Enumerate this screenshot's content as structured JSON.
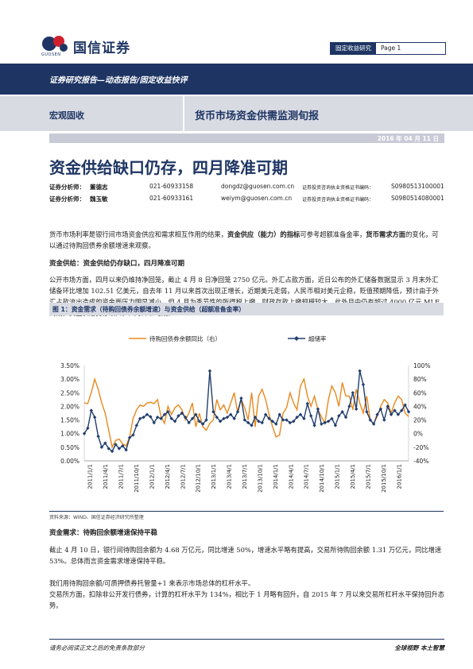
{
  "header": {
    "logo_cn": "国信证券",
    "logo_en": "GUOSEN",
    "report_tag": "固定收益研究",
    "page": "Page 1"
  },
  "band": {
    "breadcrumb": "证券研究报告—动态报告/固定收益快评",
    "section": "宏观固收",
    "series": "货币市场资金供需监测旬报"
  },
  "date": "2016 年 04 月 11 日",
  "title": "资金供给缺口仍存，四月降准可期",
  "analysts": [
    {
      "role": "证券分析师：",
      "name": "董德志",
      "phone": "021-60933158",
      "email": "dongdz@guosen.com.cn",
      "cert_label": "证券投资咨询执业资格证书编码：",
      "cert": "S0980513100001"
    },
    {
      "role": "证券分析师：",
      "name": "魏玉敏",
      "phone": "021-60933161",
      "email": "weiym@guosen.com.cn",
      "cert_label": "证券投资咨询执业资格证书编码：",
      "cert": "S0980514080001"
    }
  ],
  "intro": {
    "p1": "货币市场利率是银行间市场资金供应和需求相互作用的结果，",
    "p1b": "资金供应（能力）的指标",
    "p1c": "可参考超额准备金率，",
    "p1d": "货币需求方面",
    "p1e": "的变化，可以通过待购回债券余额增速来观察。"
  },
  "section1": {
    "heading": "资金供给：资金供给仍存缺口，四月降准可期",
    "body": "公开市场方面，四月以来仍维持净回笼，截止 4 月 8 日净回笼 2750 亿元。外汇占款方面，近日公布的外汇储备数据显示 3 月末外汇储备环比增加 102.51 亿美元，自去年 11 月以来首次出现正增长，近期美元走弱，人民币相对美元企稳，贬值预期降低，预计由于外汇占款流出造成的资金面压力明显减小，但 4 月为季节性的所得税上缴，财政存款上缴规模较大，此外月中仍有超过 4000 亿元 MLF 到期，资金供给仍存缺口，四月降准可期。"
  },
  "figure": {
    "title": "图 1：资金需求（待购回债券余额增速）与资金供给（超额准备金率）",
    "source": "资料来源：WIND、国信证券经济研究所整理"
  },
  "section2": {
    "heading": "资金需求：待购回余额增速保持平稳",
    "body": "截止 4 月 10 日，银行间待购回余额为 4.68 万亿元，同比增速 50%，增速水平略有提高，交易所待购回余额 1.31 万亿元，同比增速 53%。总体而言资金需求增速保持平稳。",
    "body2": "我们用待购回余额/可质押债券托管量+1 来表示市场总体的杠杆水平。",
    "body3": "交易所方面，扣除非公开发行债券，计算的杠杆水平为 134%，相比于 1 月略有回升，自 2015 年 7 月以来交易所杠杆水平保持回升态势。"
  },
  "footer": {
    "disclaimer": "请务必阅读正文之后的免责条款部分",
    "slogan": "全球视野 本土智慧"
  },
  "colors": {
    "navy": "#1e3563",
    "orange": "#e8891e",
    "series_blue": "#213f6d"
  },
  "chart_data": {
    "type": "line",
    "title": "",
    "legend": [
      "待购回债券余额同比（右）",
      "超储率"
    ],
    "legend_position": "top",
    "x_tick_labels": [
      "2011/1/1",
      "2011/4/1",
      "2011/7/1",
      "2011/10/1",
      "2012/1/1",
      "2012/4/1",
      "2012/7/1",
      "2012/10/1",
      "2013/1/1",
      "2013/4/1",
      "2013/7/1",
      "2013/10/1",
      "2014/1/1",
      "2014/4/1",
      "2014/7/1",
      "2014/10/1",
      "2015/1/1",
      "2015/4/1",
      "2015/7/1",
      "2015/10/1",
      "2016/1/1"
    ],
    "y_left_ticks": [
      "0.00%",
      "0.50%",
      "1.00%",
      "1.50%",
      "2.00%",
      "2.50%",
      "3.00%",
      "3.50%"
    ],
    "y_right_ticks": [
      "-40%",
      "-20%",
      "0%",
      "20%",
      "40%",
      "60%",
      "80%",
      "100%"
    ],
    "ylim_left": [
      0,
      3.5
    ],
    "ylim_right": [
      -40,
      100
    ],
    "series": [
      {
        "name": "待购回债券余额同比（右）",
        "axis": "right",
        "values": [
          45,
          44,
          60,
          80,
          65,
          45,
          30,
          5,
          -20,
          -10,
          -8,
          -15,
          -18,
          -5,
          22,
          35,
          42,
          40,
          45,
          46,
          44,
          50,
          25,
          15,
          40,
          28,
          38,
          42,
          35,
          20,
          30,
          45,
          10,
          30,
          10,
          5,
          15,
          20,
          50,
          35,
          42,
          30,
          45,
          60,
          30,
          50,
          38,
          20,
          60,
          10,
          55,
          65,
          50,
          28,
          10,
          -5,
          -2,
          30,
          38,
          60,
          45,
          35,
          70,
          80,
          55,
          40,
          55,
          35,
          25,
          15,
          50,
          70,
          60,
          40,
          75,
          55,
          55,
          35,
          65,
          45,
          30,
          55,
          20,
          15,
          25,
          40,
          50,
          45,
          30,
          45,
          55,
          50,
          30,
          25
        ],
        "ticks_count": 94
      },
      {
        "name": "超储率",
        "axis": "left",
        "values": [
          1.0,
          1.2,
          1.85,
          1.6,
          0.9,
          0.5,
          0.65,
          0.45,
          0.35,
          0.6,
          0.45,
          0.55,
          0.4,
          0.85,
          0.95,
          1.3,
          1.55,
          1.6,
          1.7,
          1.62,
          1.4,
          1.6,
          1.55,
          1.7,
          1.8,
          1.55,
          1.45,
          1.65,
          1.75,
          1.6,
          1.4,
          1.55,
          1.7,
          1.45,
          1.35,
          1.5,
          3.3,
          1.8,
          1.6,
          1.45,
          1.55,
          1.6,
          1.7,
          1.55,
          1.8,
          2.3,
          1.5,
          1.4,
          1.3,
          1.6,
          1.45,
          1.4,
          1.7,
          1.55,
          1.45,
          1.35,
          1.7,
          1.5,
          1.5,
          1.4,
          1.45,
          1.6,
          1.7,
          1.55,
          2.1,
          1.65,
          1.3,
          1.9,
          1.35,
          1.4,
          1.45,
          1.55,
          1.3,
          1.65,
          1.8,
          1.6,
          2.0,
          2.5,
          1.9,
          3.3,
          2.8,
          1.8,
          1.5,
          1.35,
          1.7,
          1.9,
          1.5,
          2.0,
          1.7,
          1.85,
          1.7,
          1.85,
          2.05,
          1.8
        ],
        "ticks_count": 94
      }
    ]
  }
}
